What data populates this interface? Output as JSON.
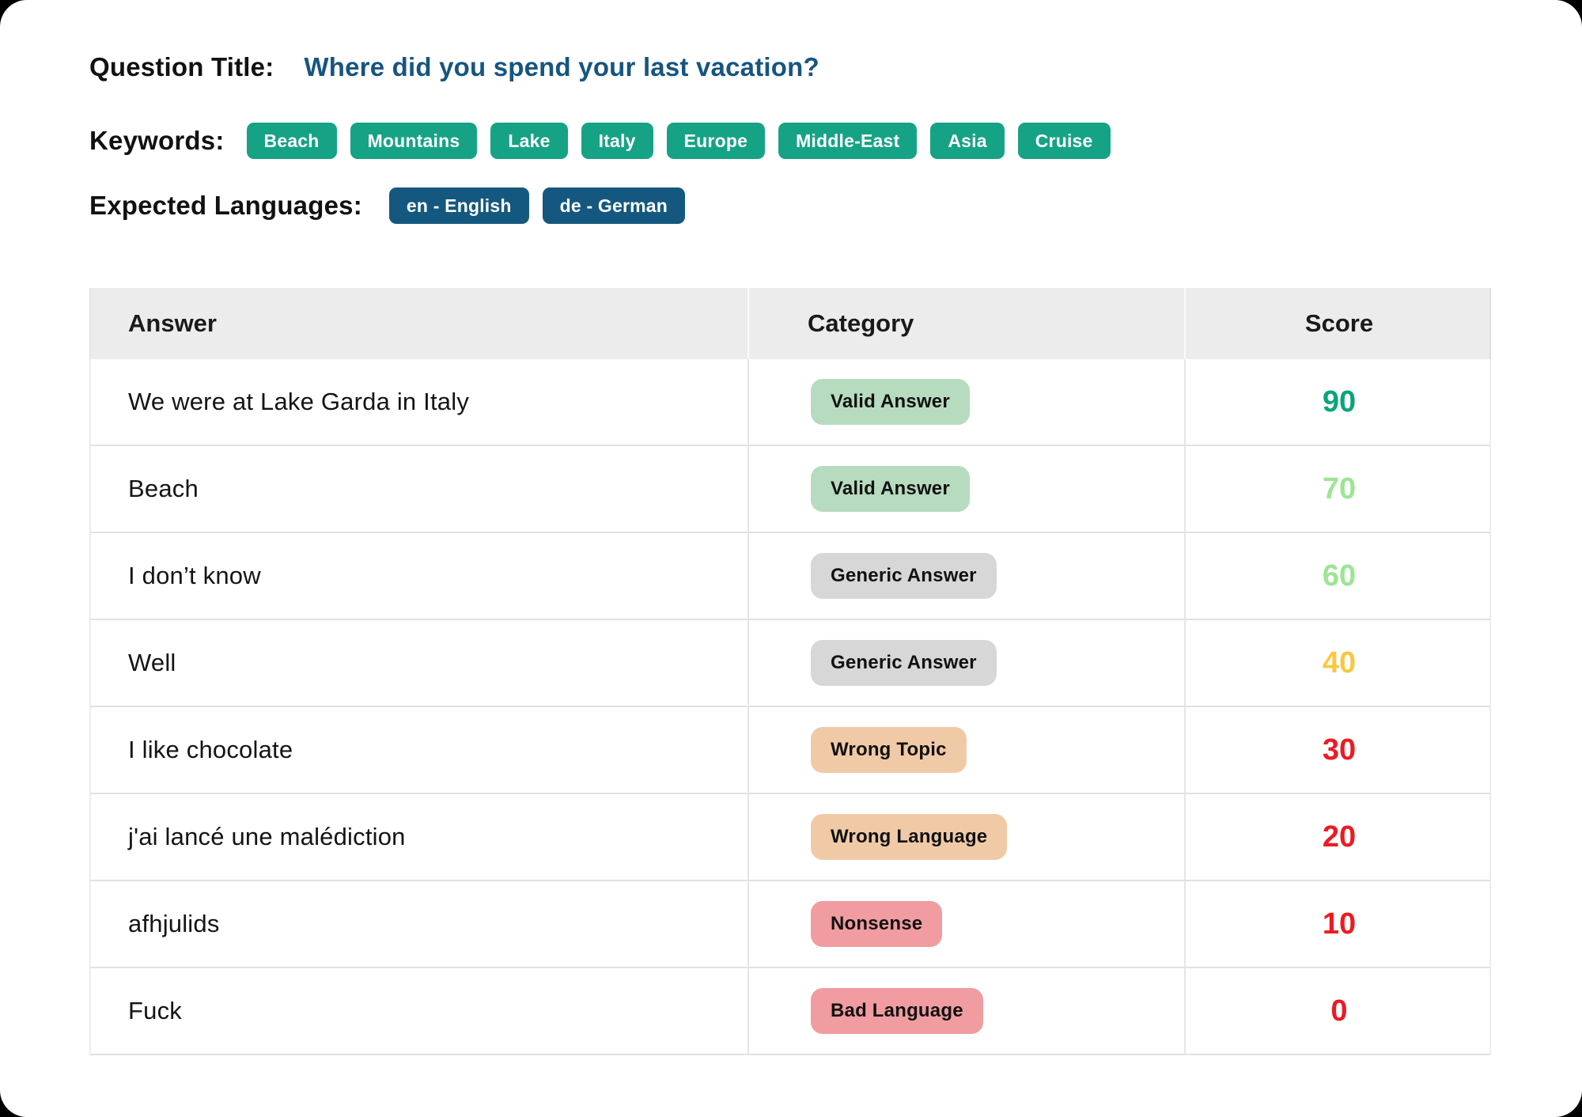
{
  "colors": {
    "title_text": "#165580",
    "keyword_chip": "#16A385",
    "language_chip": "#15587F",
    "header_bg": "#ECECEC",
    "badge_valid": "#B7DBBE",
    "badge_generic": "#D7D7D7",
    "badge_wrong": "#F0CAA7",
    "badge_bad": "#F09CA0",
    "score_high": "#0BA47D",
    "score_mid": "#9CE593",
    "score_warn": "#F9C840",
    "score_low": "#EC1B23"
  },
  "question": {
    "label": "Question Title:",
    "value": "Where did you spend your last vacation?"
  },
  "keywords": {
    "label": "Keywords:",
    "items": [
      "Beach",
      "Mountains",
      "Lake",
      "Italy",
      "Europe",
      "Middle-East",
      "Asia",
      "Cruise"
    ]
  },
  "languages": {
    "label": "Expected Languages:",
    "items": [
      "en - English",
      "de - German"
    ]
  },
  "table": {
    "headers": [
      "Answer",
      "Category",
      "Score"
    ],
    "rows": [
      {
        "answer": "We were at Lake Garda in Italy",
        "category": "Valid Answer",
        "badge_color": "#B7DBBE",
        "score": "90",
        "score_color": "#0BA47D"
      },
      {
        "answer": "Beach",
        "category": "Valid Answer",
        "badge_color": "#B7DBBE",
        "score": "70",
        "score_color": "#9CE593"
      },
      {
        "answer": "I don’t know",
        "category": "Generic Answer",
        "badge_color": "#D7D7D7",
        "score": "60",
        "score_color": "#9CE593"
      },
      {
        "answer": "Well",
        "category": "Generic Answer",
        "badge_color": "#D7D7D7",
        "score": "40",
        "score_color": "#F9C840"
      },
      {
        "answer": "I like chocolate",
        "category": "Wrong Topic",
        "badge_color": "#F0CAA7",
        "score": "30",
        "score_color": "#EC1B23"
      },
      {
        "answer": "j'ai lancé une malédiction",
        "category": "Wrong Language",
        "badge_color": "#F0CAA7",
        "score": "20",
        "score_color": "#EC1B23"
      },
      {
        "answer": "afhjulids",
        "category": "Nonsense",
        "badge_color": "#F09CA0",
        "score": "10",
        "score_color": "#EC1B23"
      },
      {
        "answer": "Fuck",
        "category": "Bad Language",
        "badge_color": "#F09CA0",
        "score": "0",
        "score_color": "#EC1B23"
      }
    ]
  }
}
